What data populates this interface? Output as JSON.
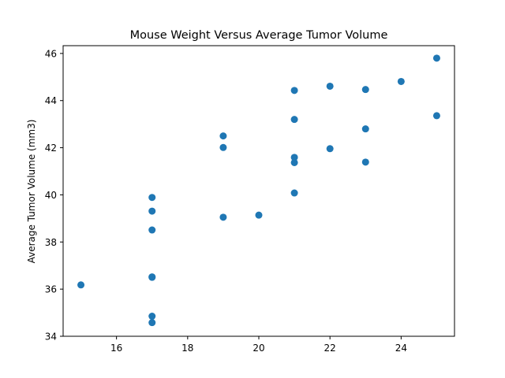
{
  "chart_data": {
    "type": "scatter",
    "title": "Mouse Weight Versus Average Tumor Volume",
    "xlabel": "",
    "ylabel": "Average Tumor Volume (mm3)",
    "xlim": [
      14.5,
      25.5
    ],
    "ylim": [
      34,
      46.33
    ],
    "xticks": [
      16,
      18,
      20,
      22,
      24
    ],
    "yticks": [
      34,
      36,
      38,
      40,
      42,
      44,
      46
    ],
    "grid": false,
    "marker_color": "#1f77b4",
    "points": [
      {
        "x": 15,
        "y": 36.18
      },
      {
        "x": 17,
        "y": 39.89
      },
      {
        "x": 17,
        "y": 39.31
      },
      {
        "x": 17,
        "y": 38.51
      },
      {
        "x": 17,
        "y": 36.52
      },
      {
        "x": 17,
        "y": 36.5
      },
      {
        "x": 17,
        "y": 34.85
      },
      {
        "x": 17,
        "y": 34.58
      },
      {
        "x": 19,
        "y": 42.5
      },
      {
        "x": 19,
        "y": 42.01
      },
      {
        "x": 19,
        "y": 39.05
      },
      {
        "x": 20,
        "y": 39.14
      },
      {
        "x": 21,
        "y": 44.43
      },
      {
        "x": 21,
        "y": 43.2
      },
      {
        "x": 21,
        "y": 41.59
      },
      {
        "x": 21,
        "y": 41.37
      },
      {
        "x": 21,
        "y": 40.08
      },
      {
        "x": 22,
        "y": 44.61
      },
      {
        "x": 22,
        "y": 41.96
      },
      {
        "x": 23,
        "y": 44.47
      },
      {
        "x": 23,
        "y": 42.8
      },
      {
        "x": 23,
        "y": 41.39
      },
      {
        "x": 24,
        "y": 44.81
      },
      {
        "x": 25,
        "y": 45.8
      },
      {
        "x": 25,
        "y": 43.36
      }
    ]
  }
}
